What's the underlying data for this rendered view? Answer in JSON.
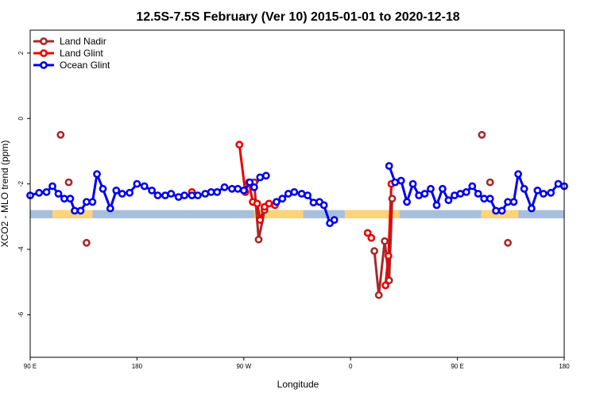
{
  "chart_data": {
    "type": "line",
    "title": "12.5S-7.5S February (Ver 10)   2015-01-01 to 2020-12-18",
    "xlabel": "Longitude",
    "ylabel": "XCO2 - MLO trend (ppm)",
    "xlim": [
      90,
      450
    ],
    "ylim": [
      -7.3,
      2.7
    ],
    "x_ticks": [
      {
        "value": 90,
        "label": "90 E"
      },
      {
        "value": 162,
        "label": "180"
      },
      {
        "value": 234,
        "label": "90 W"
      },
      {
        "value": 306,
        "label": "0"
      },
      {
        "value": 378,
        "label": "90 E"
      },
      {
        "value": 450,
        "label": "180"
      }
    ],
    "y_ticks": [
      {
        "value": 2,
        "label": "2"
      },
      {
        "value": 0,
        "label": "0"
      },
      {
        "value": -2,
        "label": "-2"
      },
      {
        "value": -4,
        "label": "-4"
      },
      {
        "value": -6,
        "label": "-6"
      }
    ],
    "legend_position": "top-left",
    "land_band": {
      "y_top": -2.8,
      "y_bottom": -3.05,
      "ocean_color": "#a8bfdc",
      "land_color": "#ffd37a",
      "land_segments": [
        [
          105,
          132
        ],
        [
          241,
          274
        ],
        [
          302,
          339
        ],
        [
          394,
          419
        ]
      ]
    },
    "series": [
      {
        "name": "Land Nadir",
        "color": "#a52a2a",
        "points": [
          [
            110.5,
            -0.5
          ],
          [
            116,
            -1.95
          ],
          [
            128,
            -3.8
          ],
          [
            241,
            -1.95
          ],
          [
            244,
            -3.7
          ],
          [
            248,
            -2.8
          ],
          [
            322,
            -4.05
          ],
          [
            325,
            -5.4
          ],
          [
            329,
            -3.75
          ],
          [
            332,
            -4.95
          ],
          [
            334,
            -2.45
          ],
          [
            394.5,
            -0.5
          ],
          [
            400,
            -1.95
          ],
          [
            412,
            -3.8
          ]
        ],
        "segments": [
          [
            [
              241,
              -1.95
            ],
            [
              244,
              -3.7
            ],
            [
              248,
              -2.8
            ]
          ],
          [
            [
              322,
              -4.05
            ],
            [
              325,
              -5.4
            ],
            [
              329,
              -3.75
            ],
            [
              332,
              -4.95
            ],
            [
              334,
              -2.45
            ]
          ]
        ]
      },
      {
        "name": "Land Glint",
        "color": "#ee0000",
        "points": [
          [
            199,
            -2.25
          ],
          [
            231,
            -0.8
          ],
          [
            235,
            -2.25
          ],
          [
            237.5,
            -1.95
          ],
          [
            240,
            -2.55
          ],
          [
            243,
            -2.6
          ],
          [
            245,
            -3.1
          ],
          [
            248,
            -2.7
          ],
          [
            251,
            -2.6
          ],
          [
            255,
            -2.65
          ],
          [
            317.5,
            -3.5
          ],
          [
            320,
            -3.65
          ],
          [
            329.5,
            -5.1
          ],
          [
            331.5,
            -4.2
          ],
          [
            333.5,
            -2.0
          ]
        ],
        "segments": [
          [
            [
              231,
              -0.8
            ],
            [
              235,
              -2.25
            ],
            [
              237.5,
              -1.95
            ],
            [
              240,
              -2.55
            ],
            [
              243,
              -2.6
            ],
            [
              245,
              -3.1
            ],
            [
              248,
              -2.7
            ],
            [
              251,
              -2.6
            ],
            [
              255,
              -2.65
            ]
          ],
          [
            [
              329.5,
              -5.1
            ],
            [
              331.5,
              -4.2
            ],
            [
              333.5,
              -2.0
            ]
          ]
        ]
      },
      {
        "name": "Ocean Glint",
        "color": "#0000ee",
        "points": [
          [
            90,
            -2.35
          ],
          [
            96,
            -2.27
          ],
          [
            101,
            -2.25
          ],
          [
            105,
            -2.07
          ],
          [
            109,
            -2.3
          ],
          [
            113,
            -2.45
          ],
          [
            117,
            -2.45
          ],
          [
            120,
            -2.82
          ],
          [
            124,
            -2.82
          ],
          [
            128,
            -2.55
          ],
          [
            132,
            -2.55
          ],
          [
            135,
            -1.7
          ],
          [
            139,
            -2.15
          ],
          [
            144,
            -2.75
          ],
          [
            148,
            -2.2
          ],
          [
            152,
            -2.3
          ],
          [
            157,
            -2.27
          ],
          [
            162,
            -2.0
          ],
          [
            167,
            -2.07
          ],
          [
            172,
            -2.2
          ],
          [
            176,
            -2.35
          ],
          [
            181,
            -2.35
          ],
          [
            185,
            -2.3
          ],
          [
            190,
            -2.4
          ],
          [
            194,
            -2.35
          ],
          [
            199,
            -2.35
          ],
          [
            203,
            -2.35
          ],
          [
            208,
            -2.3
          ],
          [
            212,
            -2.25
          ],
          [
            216,
            -2.25
          ],
          [
            221,
            -2.1
          ],
          [
            226,
            -2.15
          ],
          [
            230,
            -2.15
          ],
          [
            234,
            -2.2
          ],
          [
            238,
            -1.95
          ],
          [
            241,
            -2.1
          ],
          [
            245,
            -1.8
          ],
          [
            249,
            -1.75
          ],
          [
            256,
            -2.55
          ],
          [
            260,
            -2.45
          ],
          [
            264,
            -2.3
          ],
          [
            268,
            -2.25
          ],
          [
            273,
            -2.3
          ],
          [
            277,
            -2.35
          ],
          [
            281,
            -2.57
          ],
          [
            285,
            -2.55
          ],
          [
            288,
            -2.65
          ],
          [
            292,
            -3.2
          ],
          [
            295,
            -3.1
          ],
          [
            332,
            -1.45
          ],
          [
            336,
            -1.95
          ],
          [
            340,
            -1.9
          ],
          [
            344,
            -2.55
          ],
          [
            348,
            -2.0
          ],
          [
            352,
            -2.35
          ],
          [
            356,
            -2.3
          ],
          [
            360,
            -2.15
          ],
          [
            364,
            -2.65
          ],
          [
            368,
            -2.15
          ],
          [
            372,
            -2.5
          ],
          [
            376,
            -2.35
          ],
          [
            380,
            -2.3
          ],
          [
            384,
            -2.25
          ],
          [
            388,
            -2.07
          ],
          [
            392,
            -2.3
          ],
          [
            396,
            -2.45
          ],
          [
            400,
            -2.45
          ],
          [
            404,
            -2.82
          ],
          [
            408,
            -2.82
          ],
          [
            412,
            -2.55
          ],
          [
            416,
            -2.55
          ],
          [
            419,
            -1.7
          ],
          [
            423,
            -2.15
          ],
          [
            428,
            -2.75
          ],
          [
            432,
            -2.2
          ],
          [
            436,
            -2.3
          ],
          [
            441,
            -2.27
          ],
          [
            446,
            -2.0
          ],
          [
            450,
            -2.07
          ]
        ],
        "segments": [
          [
            [
              90,
              -2.35
            ],
            [
              96,
              -2.27
            ],
            [
              101,
              -2.25
            ],
            [
              105,
              -2.07
            ],
            [
              109,
              -2.3
            ],
            [
              113,
              -2.45
            ],
            [
              117,
              -2.45
            ],
            [
              120,
              -2.82
            ],
            [
              124,
              -2.82
            ],
            [
              128,
              -2.55
            ],
            [
              132,
              -2.55
            ],
            [
              135,
              -1.7
            ],
            [
              139,
              -2.15
            ],
            [
              144,
              -2.75
            ],
            [
              148,
              -2.2
            ],
            [
              152,
              -2.3
            ],
            [
              157,
              -2.27
            ],
            [
              162,
              -2.0
            ],
            [
              167,
              -2.07
            ],
            [
              172,
              -2.2
            ],
            [
              176,
              -2.35
            ],
            [
              181,
              -2.35
            ],
            [
              185,
              -2.3
            ],
            [
              190,
              -2.4
            ],
            [
              194,
              -2.35
            ],
            [
              199,
              -2.35
            ],
            [
              203,
              -2.35
            ],
            [
              208,
              -2.3
            ],
            [
              212,
              -2.25
            ],
            [
              216,
              -2.25
            ],
            [
              221,
              -2.1
            ],
            [
              226,
              -2.15
            ],
            [
              230,
              -2.15
            ],
            [
              234,
              -2.2
            ],
            [
              238,
              -1.95
            ],
            [
              241,
              -2.1
            ],
            [
              245,
              -1.8
            ],
            [
              249,
              -1.75
            ]
          ],
          [
            [
              256,
              -2.55
            ],
            [
              260,
              -2.45
            ],
            [
              264,
              -2.3
            ],
            [
              268,
              -2.25
            ],
            [
              273,
              -2.3
            ],
            [
              277,
              -2.35
            ],
            [
              281,
              -2.57
            ],
            [
              285,
              -2.55
            ],
            [
              288,
              -2.65
            ],
            [
              292,
              -3.2
            ],
            [
              295,
              -3.1
            ]
          ],
          [
            [
              332,
              -1.45
            ],
            [
              336,
              -1.95
            ],
            [
              340,
              -1.9
            ],
            [
              344,
              -2.55
            ],
            [
              348,
              -2.0
            ],
            [
              352,
              -2.35
            ],
            [
              356,
              -2.3
            ],
            [
              360,
              -2.15
            ],
            [
              364,
              -2.65
            ],
            [
              368,
              -2.15
            ],
            [
              372,
              -2.5
            ],
            [
              376,
              -2.35
            ],
            [
              380,
              -2.3
            ],
            [
              384,
              -2.25
            ],
            [
              388,
              -2.07
            ],
            [
              392,
              -2.3
            ],
            [
              396,
              -2.45
            ],
            [
              400,
              -2.45
            ],
            [
              404,
              -2.82
            ],
            [
              408,
              -2.82
            ],
            [
              412,
              -2.55
            ],
            [
              416,
              -2.55
            ],
            [
              419,
              -1.7
            ],
            [
              423,
              -2.15
            ],
            [
              428,
              -2.75
            ],
            [
              432,
              -2.2
            ],
            [
              436,
              -2.3
            ],
            [
              441,
              -2.27
            ],
            [
              446,
              -2.0
            ],
            [
              450,
              -2.07
            ]
          ]
        ]
      }
    ]
  }
}
